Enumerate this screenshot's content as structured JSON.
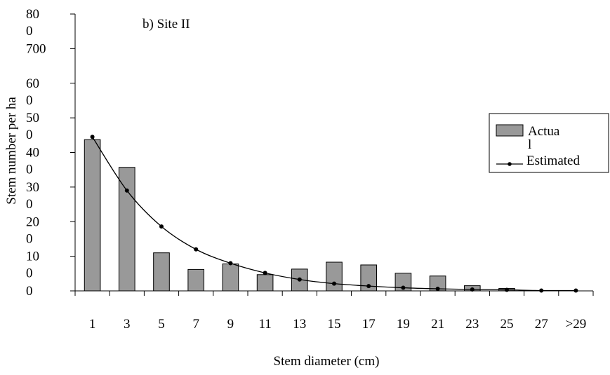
{
  "chart_data": {
    "type": "bar",
    "subtitle": "b) Site II",
    "xlabel": "Stem diameter (cm)",
    "ylabel": "Stem number per ha",
    "categories": [
      "1",
      "3",
      "5",
      "7",
      "9",
      "11",
      "13",
      "15",
      "17",
      "19",
      "21",
      "23",
      "25",
      "27",
      ">29"
    ],
    "ylim": [
      0,
      800
    ],
    "ytick_values": [
      0,
      100,
      200,
      300,
      400,
      500,
      600,
      700,
      800
    ],
    "ytick_labels": [
      {
        "line1": "0",
        "line2": ""
      },
      {
        "line1": "10",
        "line2": "0"
      },
      {
        "line1": "20",
        "line2": "0"
      },
      {
        "line1": "30",
        "line2": "0"
      },
      {
        "line1": "40",
        "line2": "0"
      },
      {
        "line1": "50",
        "line2": "0"
      },
      {
        "line1": "60",
        "line2": "0"
      },
      {
        "line1": "700",
        "line2": ""
      },
      {
        "line1": "80",
        "line2": "0"
      }
    ],
    "grid": false,
    "legend_position": "right",
    "series": [
      {
        "name": "Actual",
        "legend_line1": "Actua",
        "legend_line2": "l",
        "kind": "bar",
        "color": "#999999",
        "values": [
          437,
          357,
          110,
          62,
          78,
          47,
          63,
          83,
          75,
          51,
          43,
          15,
          7,
          0,
          0
        ]
      },
      {
        "name": "Estimated",
        "kind": "line",
        "color": "#000000",
        "values": [
          445,
          290,
          186,
          120,
          80,
          52,
          33,
          21,
          14,
          9,
          6,
          4,
          3,
          1,
          1
        ]
      }
    ]
  }
}
